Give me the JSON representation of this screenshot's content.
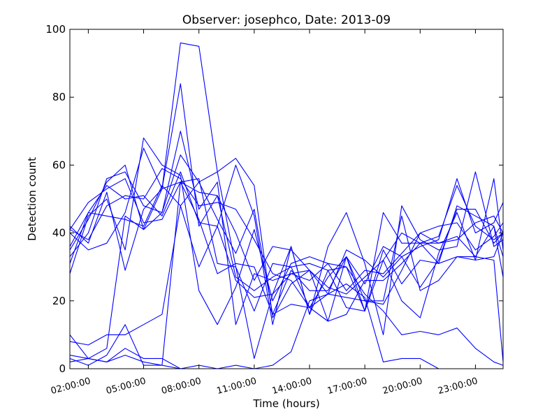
{
  "chart_data": {
    "type": "line",
    "title": "Observer: josephco, Date: 2013-09",
    "xlabel": "Time (hours)",
    "ylabel": "Detection count",
    "xlim": [
      1,
      24.5
    ],
    "ylim": [
      0,
      100
    ],
    "x": [
      1,
      2,
      3,
      4,
      5,
      6,
      7,
      8,
      9,
      10,
      11,
      12,
      13,
      14,
      15,
      16,
      17,
      18,
      19,
      20,
      21,
      22,
      23,
      24,
      24.5
    ],
    "x_tick_values": [
      2,
      5,
      8,
      11,
      14,
      17,
      20,
      23
    ],
    "x_tick_labels": [
      "02:00:00",
      "05:00:00",
      "08:00:00",
      "11:00:00",
      "14:00:00",
      "17:00:00",
      "20:00:00",
      "23:00:00"
    ],
    "y_tick_values": [
      0,
      20,
      40,
      60,
      80,
      100
    ],
    "y_tick_labels": [
      "0",
      "20",
      "40",
      "60",
      "80",
      "100"
    ],
    "grid": false,
    "line_color": "#0000ff",
    "series": [
      {
        "values": [
          42,
          37,
          52,
          29,
          47,
          53,
          84,
          42,
          51,
          27,
          23,
          27,
          30,
          18,
          27,
          33,
          25,
          36,
          33,
          36,
          38,
          56,
          40,
          43,
          49
        ]
      },
      {
        "values": [
          41,
          49,
          53,
          56,
          43,
          44,
          55,
          56,
          31,
          30,
          17,
          31,
          30,
          31,
          29,
          18,
          17,
          46,
          37,
          37,
          39,
          54,
          42,
          38,
          40
        ]
      },
      {
        "values": [
          8,
          7,
          10,
          10,
          13,
          16,
          48,
          55,
          44,
          34,
          47,
          16,
          29,
          23,
          23,
          33,
          17,
          35,
          25,
          32,
          31,
          48,
          45,
          42,
          33
        ]
      },
      {
        "values": [
          40,
          35,
          37,
          46,
          65,
          53,
          96,
          95,
          58,
          30,
          3,
          22,
          36,
          16,
          29,
          30,
          17,
          32,
          20,
          15,
          34,
          46,
          32,
          56,
          35
        ]
      },
      {
        "values": [
          33,
          40,
          56,
          58,
          48,
          46,
          70,
          47,
          55,
          13,
          28,
          26,
          28,
          29,
          24,
          22,
          27,
          32,
          40,
          37,
          37,
          39,
          33,
          42,
          27
        ]
      },
      {
        "values": [
          28,
          45,
          50,
          35,
          68,
          60,
          57,
          23,
          13,
          24,
          41,
          20,
          31,
          33,
          31,
          23,
          29,
          28,
          34,
          40,
          37,
          38,
          43,
          45,
          40
        ]
      },
      {
        "values": [
          31,
          46,
          45,
          44,
          42,
          54,
          48,
          30,
          42,
          60,
          45,
          13,
          36,
          16,
          36,
          46,
          31,
          10,
          48,
          38,
          35,
          36,
          58,
          36,
          38
        ]
      },
      {
        "values": [
          35,
          44,
          55,
          60,
          41,
          46,
          63,
          55,
          58,
          62,
          54,
          15,
          25,
          29,
          14,
          33,
          20,
          20,
          45,
          23,
          26,
          33,
          32,
          33,
          40
        ]
      },
      {
        "values": [
          10,
          3,
          6,
          45,
          41,
          53,
          55,
          44,
          28,
          31,
          30,
          16,
          19,
          18,
          22,
          35,
          32,
          27,
          33,
          24,
          32,
          47,
          47,
          37,
          40
        ]
      },
      {
        "values": [
          4,
          3,
          2,
          6,
          3,
          3,
          0,
          1,
          0,
          0,
          0,
          0,
          0,
          0,
          0,
          0,
          0,
          0,
          0,
          0,
          0,
          0,
          0,
          0,
          0
        ]
      },
      {
        "values": [
          3,
          1,
          4,
          13,
          1,
          1,
          55,
          52,
          51,
          40,
          26,
          36,
          35,
          29,
          22,
          21,
          20,
          19,
          29,
          40,
          42,
          43,
          35,
          39,
          43
        ]
      },
      {
        "values": [
          2,
          3,
          2,
          4,
          2,
          1,
          0,
          0,
          0,
          1,
          0,
          1,
          5,
          20,
          22,
          25,
          21,
          2,
          3,
          3,
          0,
          0,
          0,
          0,
          0
        ]
      },
      {
        "values": [
          36,
          46,
          54,
          50,
          51,
          45,
          58,
          43,
          42,
          26,
          21,
          22,
          28,
          26,
          31,
          30,
          22,
          17,
          10,
          11,
          10,
          12,
          6,
          2,
          1
        ]
      },
      {
        "values": [
          41,
          38,
          48,
          51,
          50,
          59,
          56,
          48,
          49,
          47,
          38,
          28,
          26,
          18,
          14,
          16,
          26,
          26,
          31,
          37,
          31,
          33,
          33,
          32,
          2
        ]
      }
    ]
  }
}
